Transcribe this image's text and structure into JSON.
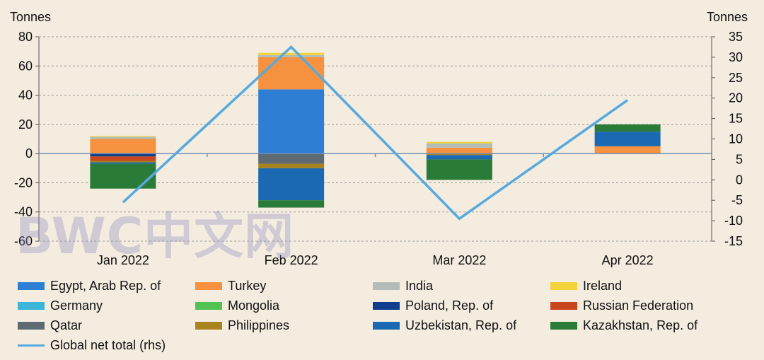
{
  "chart_data": {
    "type": "bar",
    "stacked": true,
    "title": "",
    "ylabel_left": "Tonnes",
    "ylabel_right": "Tonnes",
    "ylim_left": [
      -60,
      80
    ],
    "ylim_right": [
      -15,
      35
    ],
    "yticks_left": [
      "80",
      "60",
      "40",
      "20",
      "0",
      "-20",
      "-40",
      "-60"
    ],
    "yticks_right": [
      "35",
      "30",
      "25",
      "20",
      "15",
      "10",
      "5",
      "0",
      "-5",
      "-10",
      "-15"
    ],
    "grid": true,
    "legend_position": "bottom",
    "categories": [
      "Jan 2022",
      "Feb 2022",
      "Mar 2022",
      "Apr 2022"
    ],
    "series": [
      {
        "name": "Egypt, Arab Rep. of",
        "color": "#2e7fd4",
        "values": [
          0,
          44,
          0,
          0
        ]
      },
      {
        "name": "Turkey",
        "color": "#f6923f",
        "values": [
          10,
          22,
          4,
          5
        ]
      },
      {
        "name": "India",
        "color": "#b3bcb6",
        "values": [
          1.5,
          1.5,
          3,
          0
        ]
      },
      {
        "name": "Ireland",
        "color": "#f2d33a",
        "values": [
          0.5,
          1.5,
          1,
          0
        ]
      },
      {
        "name": "Germany",
        "color": "#3cb5d9",
        "values": [
          0,
          0,
          0,
          0
        ]
      },
      {
        "name": "Mongolia",
        "color": "#52c252",
        "values": [
          0,
          0,
          0,
          0
        ]
      },
      {
        "name": "Poland, Rep. of",
        "color": "#113d8f",
        "values": [
          -2,
          0,
          0,
          0
        ]
      },
      {
        "name": "Russian Federation",
        "color": "#c9461f",
        "values": [
          -3,
          0,
          0,
          0
        ]
      },
      {
        "name": "Qatar",
        "color": "#5f6b73",
        "values": [
          0,
          -7,
          0,
          0
        ]
      },
      {
        "name": "Philippines",
        "color": "#a8831e",
        "values": [
          -1,
          -3,
          -1,
          0
        ]
      },
      {
        "name": "Uzbekistan, Rep. of",
        "color": "#1b69b2",
        "values": [
          -1,
          -22,
          -3,
          10
        ]
      },
      {
        "name": "Kazakhstan, Rep. of",
        "color": "#2a7a38",
        "values": [
          -17,
          -5,
          -14,
          5
        ]
      }
    ],
    "line_series": {
      "name": "Global net total (rhs)",
      "color": "#57a9de",
      "axis": "right",
      "values": [
        -5.5,
        32.5,
        -9.5,
        19.5
      ]
    }
  },
  "watermark": "BWC中文网"
}
